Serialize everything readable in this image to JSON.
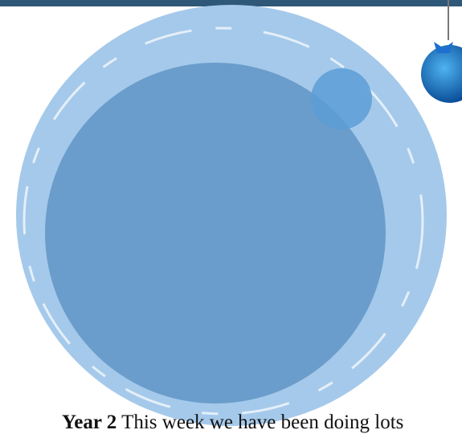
{
  "heading": "Year 2",
  "body": "This week we have been doing lots"
}
